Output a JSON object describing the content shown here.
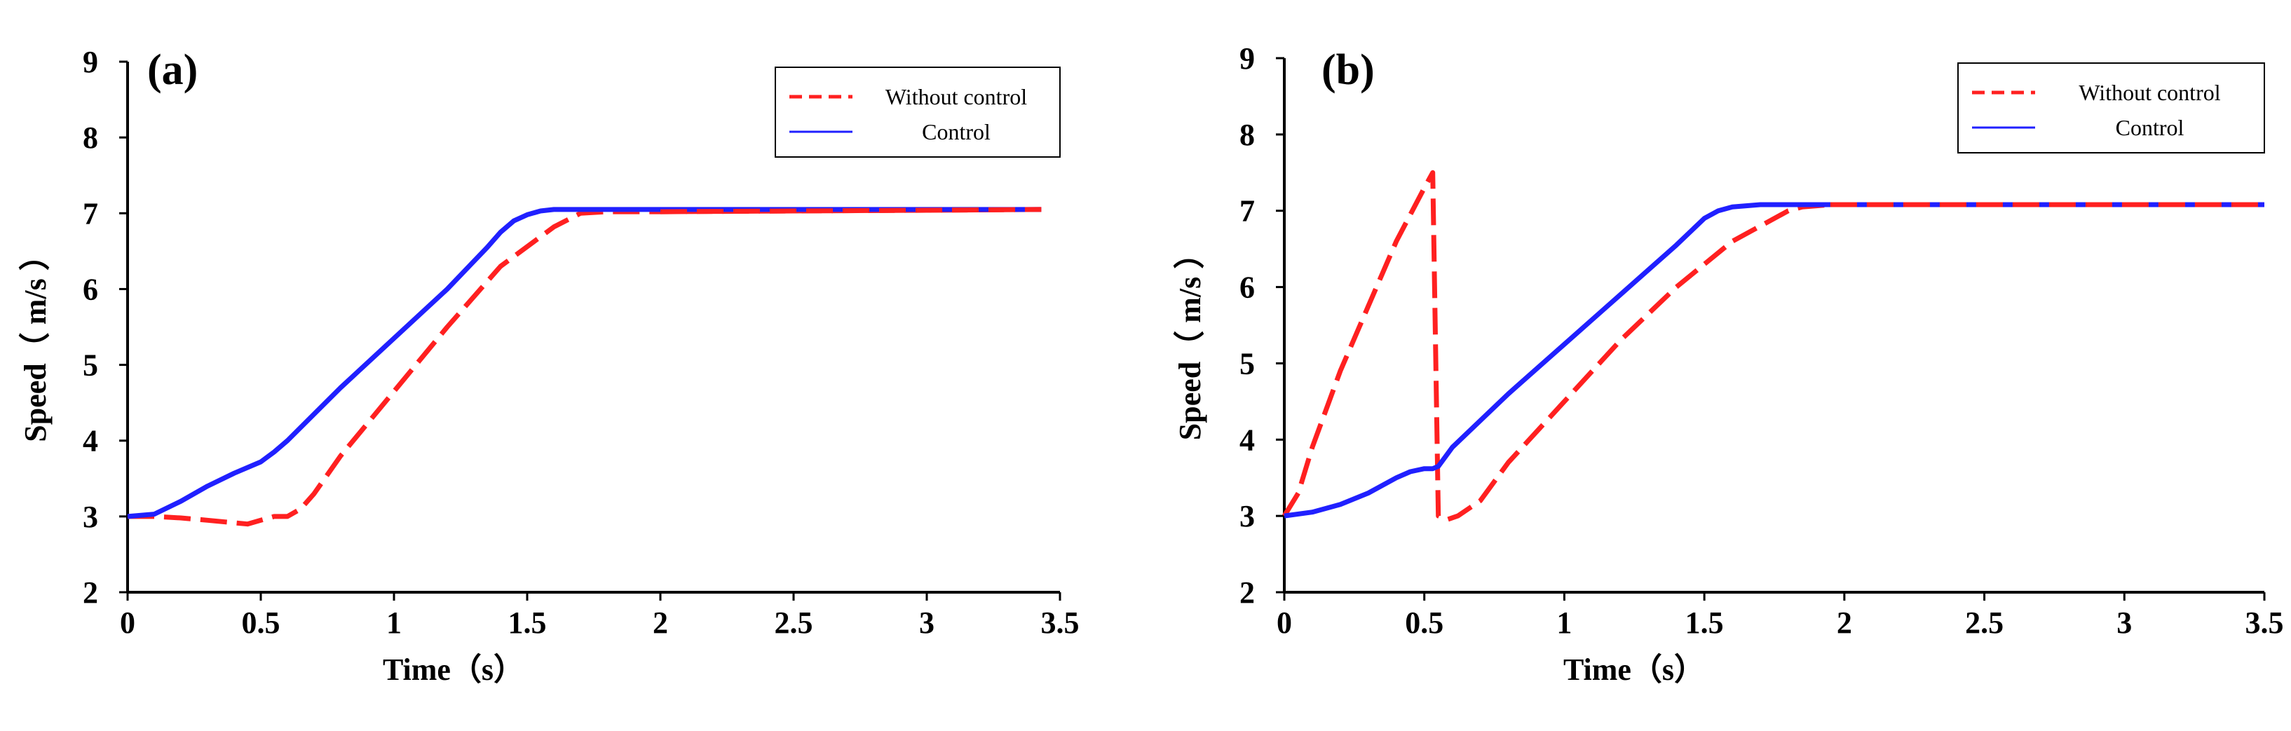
{
  "chart_data": [
    {
      "panel": "(a)",
      "type": "line",
      "xlabel": "Time（s）",
      "ylabel": "Speed（ m/s ）",
      "xlim": [
        0,
        3.5
      ],
      "ylim": [
        2,
        9
      ],
      "xticks": [
        "0",
        "0.5",
        "1",
        "1.5",
        "2",
        "2.5",
        "3",
        "3.5"
      ],
      "yticks": [
        "2",
        "3",
        "4",
        "5",
        "6",
        "7",
        "8",
        "9"
      ],
      "legend_position": "top-right",
      "series": [
        {
          "name": "Without control",
          "color": "#ff2020",
          "style": "dashed",
          "x": [
            0,
            0.1,
            0.2,
            0.3,
            0.45,
            0.5,
            0.55,
            0.6,
            0.65,
            0.7,
            0.8,
            1.0,
            1.2,
            1.4,
            1.6,
            1.7,
            1.8,
            2.0,
            2.5,
            3.0,
            3.43
          ],
          "y": [
            3.0,
            3.0,
            2.98,
            2.95,
            2.9,
            2.95,
            3.0,
            3.0,
            3.1,
            3.3,
            3.8,
            4.65,
            5.5,
            6.3,
            6.82,
            7.0,
            7.02,
            7.02,
            7.03,
            7.04,
            7.05
          ]
        },
        {
          "name": "Control",
          "color": "#2020ff",
          "style": "solid",
          "x": [
            0,
            0.1,
            0.2,
            0.3,
            0.4,
            0.5,
            0.55,
            0.6,
            0.8,
            1.0,
            1.2,
            1.35,
            1.4,
            1.45,
            1.5,
            1.55,
            1.6,
            2.0,
            2.5,
            3.0,
            3.43
          ],
          "y": [
            3.0,
            3.03,
            3.2,
            3.4,
            3.57,
            3.72,
            3.85,
            4.0,
            4.7,
            5.35,
            6.0,
            6.55,
            6.75,
            6.9,
            6.98,
            7.03,
            7.05,
            7.05,
            7.05,
            7.05,
            7.05
          ]
        }
      ]
    },
    {
      "panel": "(b)",
      "type": "line",
      "xlabel": "Time（s）",
      "ylabel": "Speed（ m/s ）",
      "xlim": [
        0,
        3.5
      ],
      "ylim": [
        2,
        9
      ],
      "xticks": [
        "0",
        "0.5",
        "1",
        "1.5",
        "2",
        "2.5",
        "3",
        "3.5"
      ],
      "yticks": [
        "2",
        "3",
        "4",
        "5",
        "6",
        "7",
        "8",
        "9"
      ],
      "legend_position": "top-right",
      "series": [
        {
          "name": "Without control",
          "color": "#ff2020",
          "style": "dashed",
          "x": [
            0,
            0.05,
            0.1,
            0.2,
            0.3,
            0.4,
            0.5,
            0.53,
            0.55,
            0.58,
            0.62,
            0.7,
            0.8,
            1.0,
            1.2,
            1.4,
            1.6,
            1.8,
            1.85,
            1.95,
            2.5,
            3.0,
            3.5
          ],
          "y": [
            3.0,
            3.3,
            3.9,
            4.9,
            5.75,
            6.6,
            7.3,
            7.5,
            3.0,
            2.95,
            3.0,
            3.2,
            3.7,
            4.5,
            5.3,
            6.0,
            6.6,
            7.0,
            7.05,
            7.08,
            7.08,
            7.08,
            7.08
          ]
        },
        {
          "name": "Control",
          "color": "#2020ff",
          "style": "solid",
          "x": [
            0,
            0.1,
            0.2,
            0.3,
            0.4,
            0.45,
            0.5,
            0.53,
            0.55,
            0.6,
            0.8,
            1.0,
            1.2,
            1.4,
            1.5,
            1.55,
            1.6,
            1.7,
            2.0,
            2.5,
            3.0,
            3.5
          ],
          "y": [
            3.0,
            3.05,
            3.15,
            3.3,
            3.5,
            3.58,
            3.62,
            3.62,
            3.65,
            3.9,
            4.6,
            5.25,
            5.9,
            6.55,
            6.9,
            7.0,
            7.05,
            7.08,
            7.08,
            7.08,
            7.08,
            7.08
          ]
        }
      ]
    }
  ]
}
